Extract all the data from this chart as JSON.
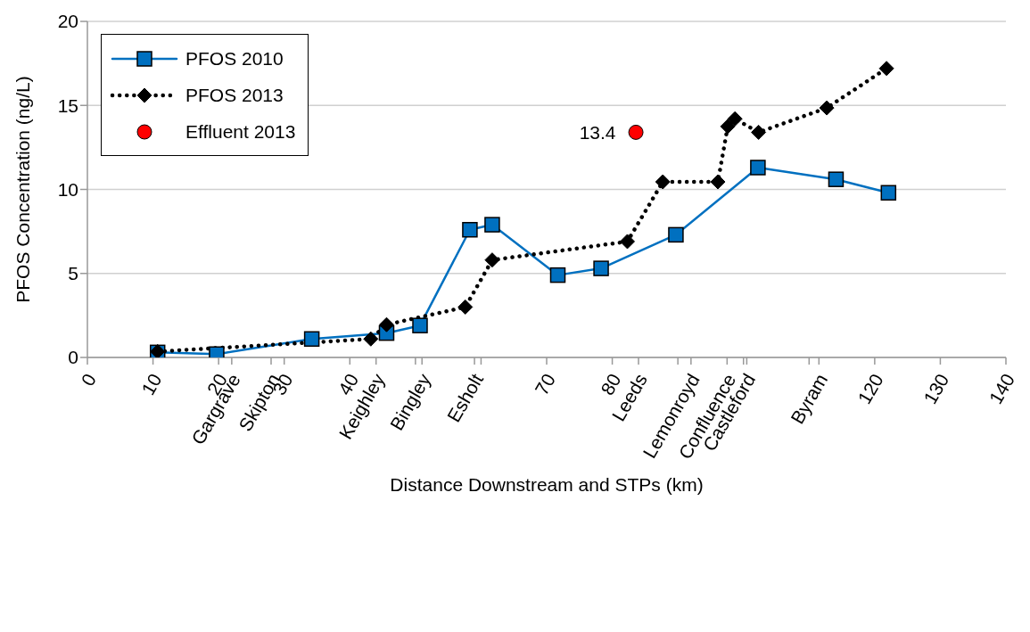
{
  "chart_data": {
    "type": "line",
    "xlabel": "Distance Downstream and STPs (km)",
    "ylabel": "PFOS Concentration (ng/L)",
    "xlim": [
      0,
      140
    ],
    "xticks": [
      0,
      10,
      {
        "value": 22,
        "label": "Gargrave"
      },
      20,
      {
        "value": 28,
        "label": "Skipton"
      },
      30,
      40,
      {
        "value": 44,
        "label": "Keighley"
      },
      {
        "value": 50,
        "label": null
      },
      {
        "value": 51,
        "label": "Bingley"
      },
      {
        "value": 59,
        "label": "Esholt"
      },
      {
        "value": 60,
        "label": null
      },
      70,
      80,
      {
        "value": 84,
        "label": "Leeds"
      },
      {
        "value": 90,
        "label": null
      },
      {
        "value": 92,
        "label": "Lemonroyd"
      },
      {
        "value": 97.5,
        "label": "Confluence"
      },
      {
        "value": 100,
        "label": null
      },
      {
        "value": 100.5,
        "label": "Castleford"
      },
      {
        "value": 110,
        "label": null
      },
      {
        "value": 111.5,
        "label": "Byram"
      },
      120,
      130,
      140
    ],
    "ylim": [
      0,
      20
    ],
    "yticks": [
      0,
      5,
      10,
      15,
      20
    ],
    "grid": "y",
    "legend": "top left",
    "series": [
      {
        "name": "PFOS 2010",
        "color": "#0070c0",
        "marker": "square",
        "line_style": "solid",
        "x": [
          10.7,
          19.7,
          34.2,
          45.6,
          50.7,
          58.3,
          61.7,
          71.7,
          78.3,
          89.7,
          102.2,
          114.1,
          122.1
        ],
        "values": [
          0.3,
          0.2,
          1.1,
          1.45,
          1.9,
          7.6,
          7.9,
          4.9,
          5.3,
          7.3,
          11.3,
          10.6,
          9.8
        ]
      },
      {
        "name": "PFOS 2013",
        "color": "#000000",
        "marker": "diamond",
        "line_style": "dotted",
        "x": [
          10.7,
          43.2,
          45.6,
          57.6,
          61.7,
          82.3,
          87.7,
          96.1,
          97.6,
          98.7,
          102.3,
          112.7,
          121.8
        ],
        "values": [
          0.35,
          1.1,
          1.95,
          3.0,
          5.8,
          6.9,
          10.45,
          10.45,
          13.75,
          14.2,
          13.4,
          14.85,
          17.2
        ]
      },
      {
        "name": "Effluent 2013",
        "type": "scatter",
        "color": "#ff0000",
        "marker": "circle",
        "x": [
          83.6
        ],
        "values": [
          13.4
        ],
        "value_labels": [
          "13.4"
        ]
      }
    ]
  }
}
